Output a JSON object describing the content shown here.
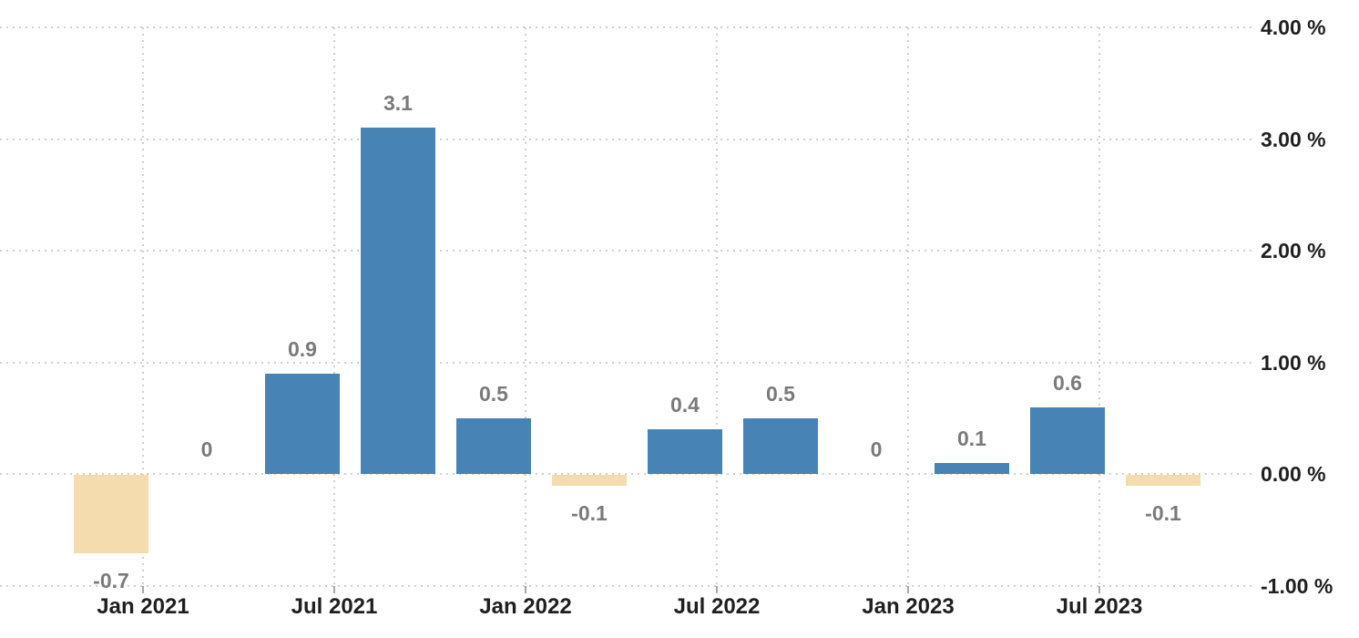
{
  "chart_data": {
    "type": "bar",
    "title": "",
    "xlabel": "",
    "ylabel": "",
    "unit": "%",
    "values": [
      -0.7,
      0,
      0.9,
      3.1,
      0.5,
      -0.1,
      0.4,
      0.5,
      0,
      0.1,
      0.6,
      -0.1
    ],
    "bar_value_labels": [
      "-0.7",
      "0",
      "0.9",
      "3.1",
      "0.5",
      "-0.1",
      "0.4",
      "0.5",
      "0",
      "0.1",
      "0.6",
      "-0.1"
    ],
    "x_tick_labels": [
      "Jan 2021",
      "Jul 2021",
      "Jan 2022",
      "Jul 2022",
      "Jan 2023",
      "Jul 2023"
    ],
    "y_tick_labels": [
      "4.00 %",
      "3.00 %",
      "2.00 %",
      "1.00 %",
      "0.00 %",
      "-1.00 %"
    ],
    "y_tick_values": [
      4,
      3,
      2,
      1,
      0,
      -1
    ],
    "ylim": [
      -1.45,
      4.25
    ],
    "y_axis_side": "right",
    "grid": "dotted",
    "legend": null,
    "colors": {
      "positive_bar": "#4783b4",
      "negative_bar": "#f4dcae",
      "gridline": "#cfcfcf",
      "axis_text": "#1f1f1f",
      "value_label_text": "#7a7a7a",
      "tick_mark": "#a8a8a8",
      "background": "#ffffff"
    }
  }
}
